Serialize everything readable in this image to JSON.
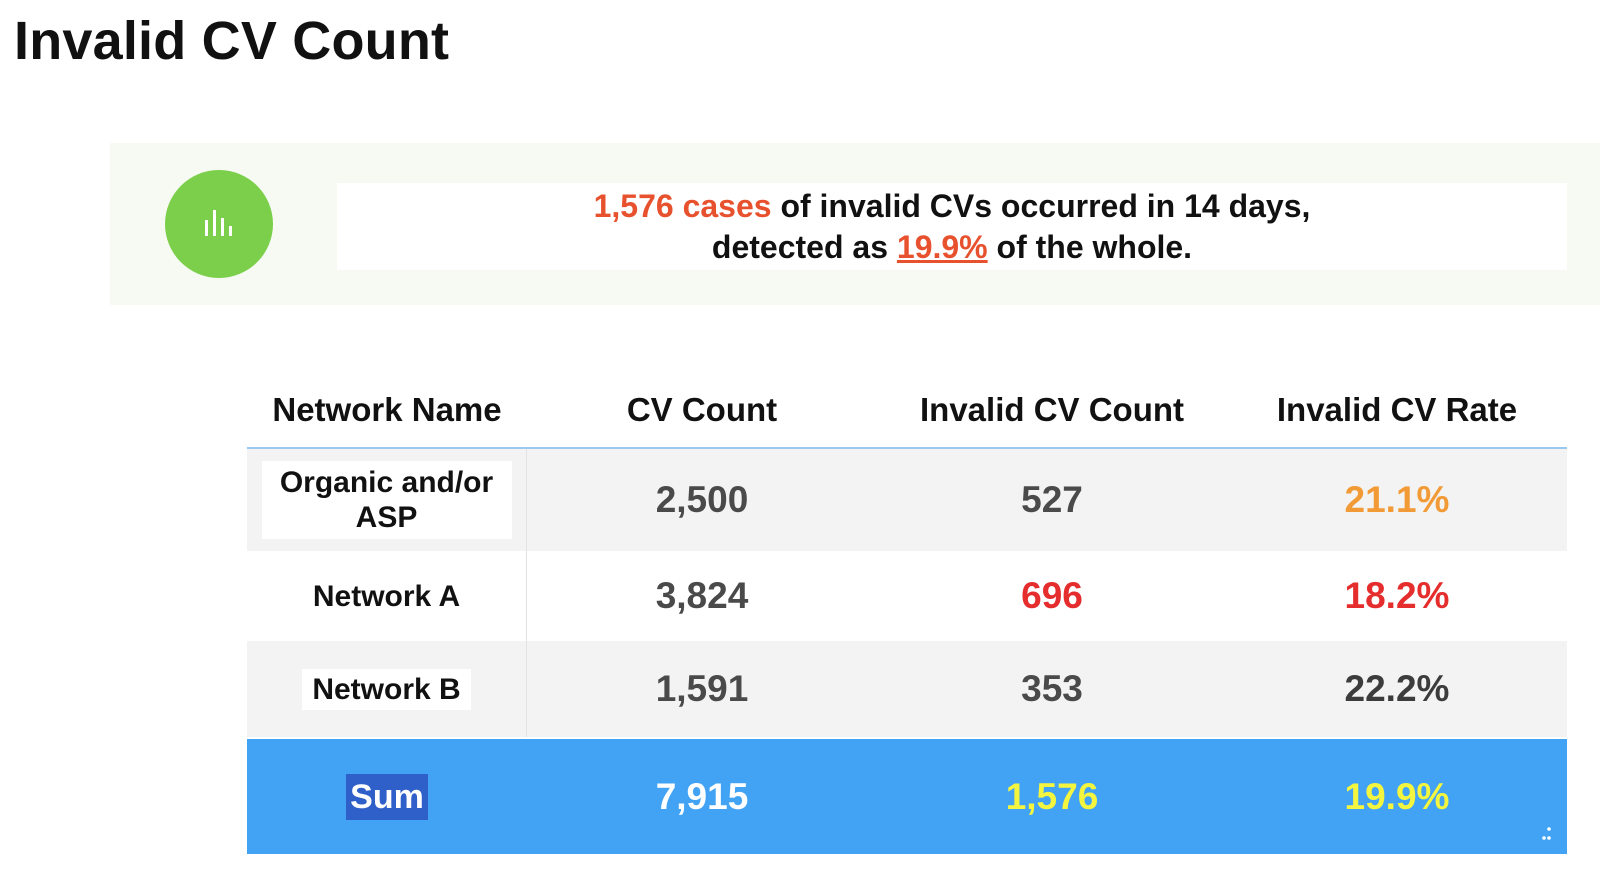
{
  "page_title": "Invalid CV Count",
  "summary": {
    "icon": "bar-chart-icon",
    "cases_highlight": "1,576 cases",
    "line1_rest": " of invalid CVs occurred in 14 days,",
    "line2_prefix": "detected as ",
    "rate_highlight": "19.9%",
    "line2_suffix": " of the whole."
  },
  "table": {
    "headers": [
      "Network Name",
      "CV Count",
      "Invalid CV Count",
      "Invalid CV Rate"
    ],
    "rows": [
      {
        "name": "Organic and/or ASP",
        "cv_count": "2,500",
        "invalid_count": "527",
        "invalid_rate": "21.1%"
      },
      {
        "name": "Network A",
        "cv_count": "3,824",
        "invalid_count": "696",
        "invalid_rate": "18.2%"
      },
      {
        "name": "Network B",
        "cv_count": "1,591",
        "invalid_count": "353",
        "invalid_rate": "22.2%"
      }
    ],
    "sum": {
      "label": "Sum",
      "cv_count": "7,915",
      "invalid_count": "1,576",
      "invalid_rate": "19.9%"
    }
  },
  "colors": {
    "highlight_red": "#e8512e",
    "icon_green": "#7ccf4a",
    "sum_row_blue": "#42a3f5",
    "rate_orange": "#f29a36",
    "value_red": "#e52d2d",
    "sum_yellow": "#f4f53f"
  }
}
